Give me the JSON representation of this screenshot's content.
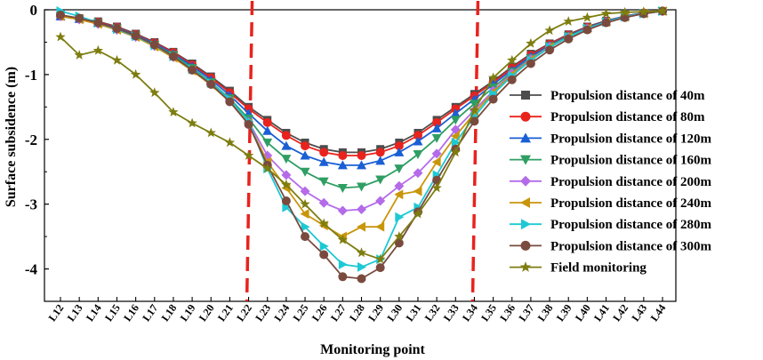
{
  "chart_data": {
    "type": "line",
    "xlabel": "Monitoring point",
    "ylabel": "Surface subsidence (m)",
    "ylim": [
      -4.5,
      0
    ],
    "yticks": [
      0,
      -1,
      -2,
      -3,
      -4
    ],
    "categories": [
      "L12",
      "L13",
      "L14",
      "L15",
      "L16",
      "L17",
      "L18",
      "L19",
      "L20",
      "L21",
      "L22",
      "L23",
      "L24",
      "L25",
      "L26",
      "L27",
      "L28",
      "L29",
      "L30",
      "L31",
      "L32",
      "L33",
      "L34",
      "L35",
      "L36",
      "L37",
      "L38",
      "L39",
      "L40",
      "L41",
      "L42",
      "L43",
      "L44"
    ],
    "reference_lines": [
      {
        "x": "L22",
        "color": "#e8231d",
        "style": "dashed"
      },
      {
        "x": "L34",
        "color": "#e8231d",
        "style": "dashed"
      }
    ],
    "series": [
      {
        "name": "Propulsion distance of 40m",
        "color": "#4d4d4d",
        "marker": "square",
        "values": [
          -0.1,
          -0.13,
          -0.18,
          -0.26,
          -0.37,
          -0.5,
          -0.65,
          -0.83,
          -1.03,
          -1.25,
          -1.5,
          -1.7,
          -1.9,
          -2.05,
          -2.15,
          -2.2,
          -2.2,
          -2.15,
          -2.05,
          -1.9,
          -1.7,
          -1.5,
          -1.3,
          -1.1,
          -0.88,
          -0.68,
          -0.52,
          -0.38,
          -0.26,
          -0.17,
          -0.1,
          -0.05,
          -0.02
        ]
      },
      {
        "name": "Propulsion distance of 80m",
        "color": "#e8231d",
        "marker": "circle",
        "values": [
          -0.1,
          -0.14,
          -0.19,
          -0.27,
          -0.38,
          -0.51,
          -0.66,
          -0.85,
          -1.05,
          -1.28,
          -1.53,
          -1.74,
          -1.94,
          -2.1,
          -2.2,
          -2.25,
          -2.25,
          -2.2,
          -2.1,
          -1.94,
          -1.74,
          -1.53,
          -1.33,
          -1.12,
          -0.9,
          -0.7,
          -0.53,
          -0.39,
          -0.27,
          -0.18,
          -0.1,
          -0.05,
          -0.02
        ]
      },
      {
        "name": "Propulsion distance of 120m",
        "color": "#1a5fd4",
        "marker": "triangle-up",
        "values": [
          -0.1,
          -0.14,
          -0.2,
          -0.28,
          -0.39,
          -0.52,
          -0.68,
          -0.87,
          -1.08,
          -1.32,
          -1.6,
          -1.87,
          -2.1,
          -2.25,
          -2.35,
          -2.4,
          -2.4,
          -2.33,
          -2.2,
          -2.03,
          -1.83,
          -1.6,
          -1.38,
          -1.15,
          -0.93,
          -0.72,
          -0.55,
          -0.4,
          -0.28,
          -0.18,
          -0.1,
          -0.05,
          -0.02
        ]
      },
      {
        "name": "Propulsion distance of 160m",
        "color": "#2f9e63",
        "marker": "triangle-down",
        "values": [
          -0.1,
          -0.15,
          -0.21,
          -0.29,
          -0.4,
          -0.54,
          -0.7,
          -0.9,
          -1.12,
          -1.37,
          -1.68,
          -2.05,
          -2.3,
          -2.5,
          -2.65,
          -2.75,
          -2.73,
          -2.62,
          -2.45,
          -2.23,
          -1.98,
          -1.7,
          -1.45,
          -1.2,
          -0.96,
          -0.75,
          -0.56,
          -0.41,
          -0.29,
          -0.19,
          -0.11,
          -0.06,
          -0.02
        ]
      },
      {
        "name": "Propulsion distance of 200m",
        "color": "#b46be8",
        "marker": "diamond",
        "values": [
          -0.1,
          -0.15,
          -0.22,
          -0.31,
          -0.42,
          -0.56,
          -0.73,
          -0.93,
          -1.15,
          -1.4,
          -1.73,
          -2.25,
          -2.55,
          -2.8,
          -2.98,
          -3.1,
          -3.08,
          -2.95,
          -2.72,
          -2.52,
          -2.22,
          -1.85,
          -1.55,
          -1.25,
          -0.98,
          -0.76,
          -0.57,
          -0.42,
          -0.29,
          -0.19,
          -0.11,
          -0.06,
          -0.02
        ]
      },
      {
        "name": "Propulsion distance of 240m",
        "color": "#c8960a",
        "marker": "triangle-left",
        "values": [
          -0.1,
          -0.15,
          -0.22,
          -0.31,
          -0.42,
          -0.57,
          -0.74,
          -0.94,
          -1.16,
          -1.42,
          -1.75,
          -2.35,
          -2.75,
          -3.15,
          -3.33,
          -3.5,
          -3.35,
          -3.35,
          -2.85,
          -2.8,
          -2.35,
          -1.95,
          -1.6,
          -1.27,
          -1.0,
          -0.77,
          -0.58,
          -0.42,
          -0.29,
          -0.19,
          -0.11,
          -0.06,
          -0.02
        ]
      },
      {
        "name": "Propulsion distance of 280m",
        "color": "#1dc9d4",
        "marker": "triangle-right",
        "values": [
          -0.02,
          -0.1,
          -0.2,
          -0.3,
          -0.41,
          -0.55,
          -0.72,
          -0.92,
          -1.13,
          -1.38,
          -1.72,
          -2.45,
          -3.05,
          -3.35,
          -3.65,
          -3.93,
          -3.97,
          -3.85,
          -3.2,
          -3.05,
          -2.55,
          -2.05,
          -1.65,
          -1.3,
          -1.02,
          -0.78,
          -0.58,
          -0.42,
          -0.29,
          -0.19,
          -0.11,
          -0.06,
          -0.02
        ]
      },
      {
        "name": "Propulsion distance of 300m",
        "color": "#7a4a3e",
        "marker": "circle",
        "values": [
          -0.08,
          -0.13,
          -0.2,
          -0.29,
          -0.4,
          -0.54,
          -0.72,
          -0.93,
          -1.15,
          -1.42,
          -1.77,
          -2.4,
          -2.95,
          -3.5,
          -3.78,
          -4.12,
          -4.15,
          -3.98,
          -3.6,
          -3.12,
          -2.63,
          -2.15,
          -1.72,
          -1.38,
          -1.08,
          -0.83,
          -0.62,
          -0.45,
          -0.31,
          -0.2,
          -0.12,
          -0.06,
          -0.02
        ]
      },
      {
        "name": "Field monitoring",
        "color": "#7d7d10",
        "marker": "star",
        "values": [
          -0.42,
          -0.7,
          -0.63,
          -0.78,
          -1.0,
          -1.28,
          -1.58,
          -1.75,
          -1.9,
          -2.05,
          -2.25,
          -2.45,
          -2.7,
          -3.0,
          -3.3,
          -3.55,
          -3.75,
          -3.85,
          -3.5,
          -3.15,
          -2.75,
          -2.2,
          -1.55,
          -1.05,
          -0.78,
          -0.52,
          -0.32,
          -0.18,
          -0.12,
          -0.06,
          -0.04,
          -0.03,
          -0.02
        ]
      }
    ]
  }
}
